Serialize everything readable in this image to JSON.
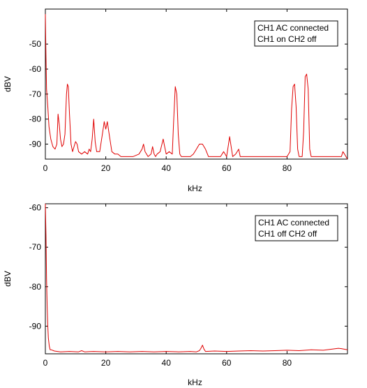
{
  "chart_data": [
    {
      "type": "line",
      "xlabel": "kHz",
      "ylabel": "dBV",
      "xlim": [
        0,
        100
      ],
      "ylim": [
        -96,
        -36
      ],
      "xticks": [
        0,
        20,
        40,
        60,
        80
      ],
      "yticks": [
        -50,
        -60,
        -70,
        -80,
        -90
      ],
      "legend_lines": [
        "CH1 AC connected",
        "CH1 on CH2 off"
      ],
      "legend_position": "top-right",
      "grid": false,
      "line_color": "#e00000",
      "series": [
        {
          "x": [
            0,
            0.2,
            0.4,
            0.8,
            1.2,
            1.8,
            2.5,
            3.2,
            3.8,
            4.2,
            4.6,
            5.0,
            5.5,
            6.0,
            6.5,
            7.0,
            7.3,
            7.6,
            8.0,
            8.5,
            9.0,
            9.5,
            10.0,
            10.5,
            11.0,
            12.0,
            13.0,
            14.0,
            14.5,
            15.0,
            15.5,
            16.0,
            16.5,
            17.0,
            18.0,
            19.0,
            19.5,
            20.0,
            20.5,
            21.0,
            21.5,
            22.0,
            23.0,
            24.0,
            25.0,
            27.0,
            29.0,
            31.0,
            32.0,
            32.5,
            33.0,
            34.0,
            35.0,
            35.5,
            36.0,
            36.5,
            37.0,
            38.0,
            39.0,
            39.5,
            40.0,
            41.0,
            42.0,
            42.5,
            43.0,
            43.5,
            44.0,
            44.5,
            45.0,
            46.0,
            48.0,
            49.0,
            50.0,
            51.0,
            52.0,
            53.0,
            54.0,
            56.0,
            58.0,
            59.0,
            60.0,
            60.5,
            61.0,
            61.5,
            62.0,
            63.0,
            64.0,
            64.5,
            65.0,
            67.0,
            70.0,
            72.0,
            74.0,
            76.0,
            78.0,
            80.0,
            81.0,
            81.5,
            82.0,
            82.5,
            83.0,
            83.5,
            84.0,
            85.0,
            85.5,
            86.0,
            86.5,
            87.0,
            87.5,
            88.0,
            90.0,
            92.0,
            94.0,
            96.0,
            98.0,
            98.5,
            99.0,
            100.0
          ],
          "y": [
            -38,
            -55,
            -68,
            -75,
            -83,
            -88,
            -91,
            -92,
            -90,
            -78,
            -82,
            -88,
            -91,
            -90,
            -86,
            -70,
            -66,
            -67,
            -78,
            -90,
            -93,
            -91,
            -89,
            -90,
            -93,
            -94,
            -93,
            -94,
            -92,
            -93,
            -88,
            -80,
            -89,
            -93,
            -93,
            -85,
            -81,
            -84,
            -81,
            -85,
            -89,
            -93,
            -94,
            -94,
            -95,
            -95,
            -95,
            -94,
            -92,
            -90,
            -93,
            -95,
            -94,
            -91,
            -94,
            -95,
            -94,
            -93,
            -88,
            -91,
            -94,
            -93,
            -94,
            -80,
            -67,
            -70,
            -86,
            -94,
            -95,
            -95,
            -95,
            -94,
            -92,
            -90,
            -90,
            -92,
            -95,
            -95,
            -95,
            -93,
            -95,
            -91,
            -87,
            -91,
            -95,
            -94,
            -92,
            -95,
            -95,
            -95,
            -95,
            -95,
            -95,
            -95,
            -95,
            -95,
            -93,
            -76,
            -67,
            -66,
            -75,
            -92,
            -95,
            -95,
            -85,
            -63,
            -62,
            -68,
            -92,
            -95,
            -95,
            -95,
            -95,
            -95,
            -95,
            -93,
            -94,
            -96
          ]
        }
      ]
    },
    {
      "type": "line",
      "xlabel": "kHz",
      "ylabel": "dBV",
      "xlim": [
        0,
        100
      ],
      "ylim": [
        -97,
        -59
      ],
      "xticks": [
        0,
        20,
        40,
        60,
        80
      ],
      "yticks": [
        -60,
        -70,
        -80,
        -90
      ],
      "legend_lines": [
        "CH1 AC connected",
        "CH1 off CH2 off"
      ],
      "legend_position": "top-right",
      "grid": false,
      "line_color": "#e00000",
      "series": [
        {
          "x": [
            0,
            0.2,
            0.4,
            0.6,
            0.8,
            1.0,
            1.3,
            1.6,
            2.0,
            3.0,
            5.0,
            8.0,
            11.0,
            12.0,
            13.0,
            16.0,
            20.0,
            24.0,
            28.0,
            32.0,
            36.0,
            40.0,
            44.0,
            48.0,
            50.0,
            51.0,
            51.5,
            52.0,
            52.5,
            53.0,
            56.0,
            60.0,
            64.0,
            68.0,
            72.0,
            76.0,
            80.0,
            84.0,
            88.0,
            92.0,
            95.0,
            97.0,
            98.0,
            100.0
          ],
          "y": [
            -59,
            -67,
            -78,
            -85,
            -90,
            -93,
            -95,
            -96,
            -96,
            -96.3,
            -96.5,
            -96.4,
            -96.5,
            -96.2,
            -96.5,
            -96.4,
            -96.5,
            -96.4,
            -96.5,
            -96.4,
            -96.5,
            -96.4,
            -96.5,
            -96.4,
            -96.5,
            -96.2,
            -95.6,
            -94.8,
            -95.8,
            -96.4,
            -96.3,
            -96.4,
            -96.3,
            -96.2,
            -96.3,
            -96.2,
            -96.1,
            -96.2,
            -96.0,
            -96.1,
            -95.8,
            -95.6,
            -95.7,
            -96.0
          ]
        }
      ]
    }
  ]
}
